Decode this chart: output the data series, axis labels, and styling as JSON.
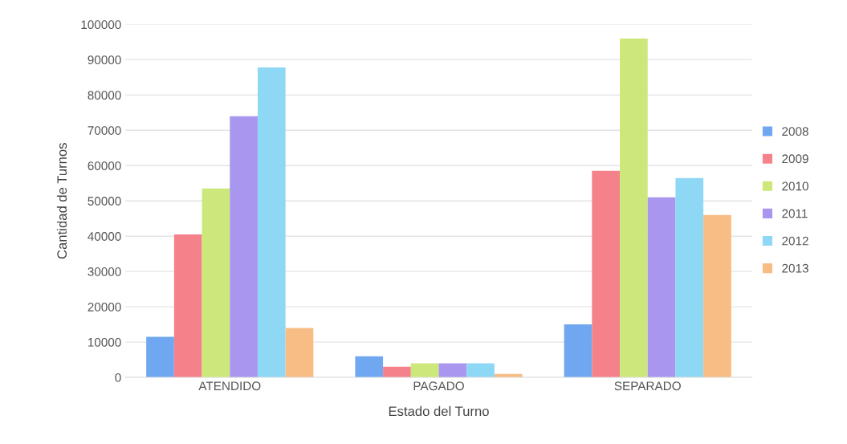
{
  "chart_data": {
    "type": "bar",
    "xlabel": "Estado del Turno",
    "ylabel": "Cantidad de Turnos",
    "categories": [
      "ATENDIDO",
      "PAGADO",
      "SEPARADO"
    ],
    "series": [
      {
        "name": "2008",
        "color": "#6fa8f0",
        "values": [
          11500,
          6000,
          15000
        ]
      },
      {
        "name": "2009",
        "color": "#f5818a",
        "values": [
          40500,
          3000,
          58500
        ]
      },
      {
        "name": "2010",
        "color": "#cde87a",
        "values": [
          53500,
          4000,
          96000
        ]
      },
      {
        "name": "2011",
        "color": "#a996ef",
        "values": [
          74000,
          4000,
          51000
        ]
      },
      {
        "name": "2012",
        "color": "#8fd8f5",
        "values": [
          87800,
          4000,
          56500
        ]
      },
      {
        "name": "2013",
        "color": "#f7bd85",
        "values": [
          14000,
          1000,
          46000
        ]
      }
    ],
    "ylim": [
      0,
      100000
    ],
    "yticks": [
      0,
      10000,
      20000,
      30000,
      40000,
      50000,
      60000,
      70000,
      80000,
      90000,
      100000
    ],
    "grid": "y",
    "legend": "right"
  }
}
